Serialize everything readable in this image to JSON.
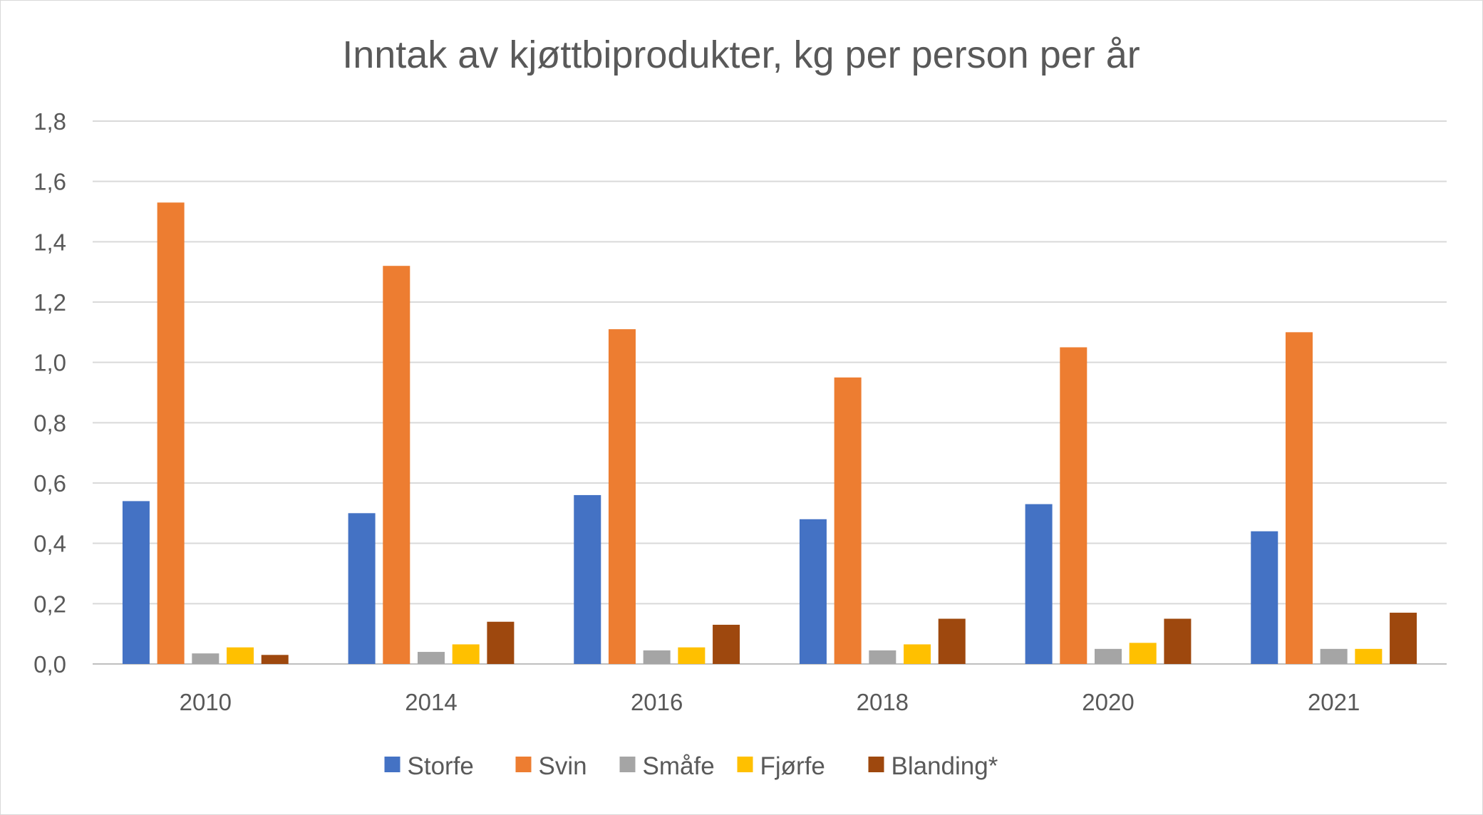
{
  "chart_data": {
    "type": "bar",
    "title": "Inntak av kjøttbiprodukter, kg per person per år",
    "xlabel": "",
    "ylabel": "",
    "categories": [
      "2010",
      "2014",
      "2016",
      "2018",
      "2020",
      "2021"
    ],
    "ylim": [
      0,
      1.8
    ],
    "yticks": [
      "0,0",
      "0,2",
      "0,4",
      "0,6",
      "0,8",
      "1,0",
      "1,2",
      "1,4",
      "1,6",
      "1,8"
    ],
    "grid": true,
    "legend_position": "bottom",
    "series": [
      {
        "name": "Storfe",
        "color": "#4472C4",
        "values": [
          0.54,
          0.5,
          0.56,
          0.48,
          0.53,
          0.44
        ]
      },
      {
        "name": "Svin",
        "color": "#ED7D31",
        "values": [
          1.53,
          1.32,
          1.11,
          0.95,
          1.05,
          1.1
        ]
      },
      {
        "name": "Småfe",
        "color": "#A5A5A5",
        "values": [
          0.035,
          0.04,
          0.045,
          0.045,
          0.05,
          0.05
        ]
      },
      {
        "name": "Fjørfe",
        "color": "#FFC000",
        "values": [
          0.055,
          0.065,
          0.055,
          0.065,
          0.07,
          0.05
        ]
      },
      {
        "name": "Blanding*",
        "color": "#9E480E",
        "values": [
          0.03,
          0.14,
          0.13,
          0.15,
          0.15,
          0.17
        ]
      }
    ]
  }
}
